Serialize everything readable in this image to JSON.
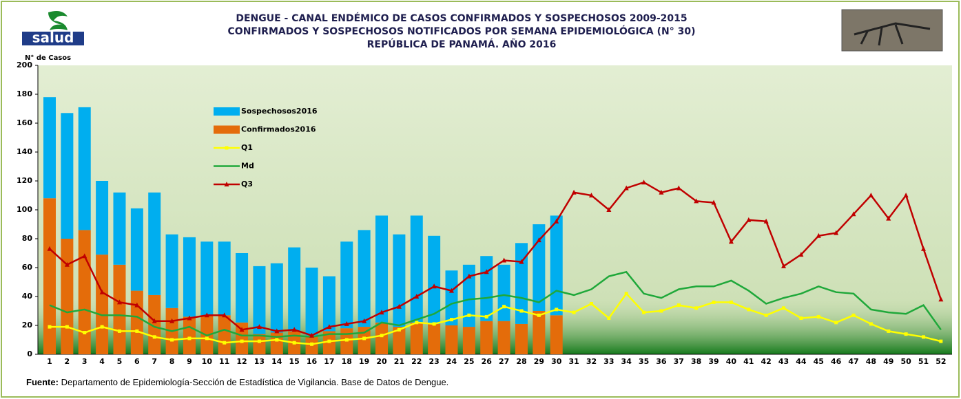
{
  "chart_data": {
    "type": "bar-line",
    "title_lines": [
      "DENGUE - CANAL ENDÉMICO DE CASOS CONFIRMADOS Y SOSPECHOSOS 2009-2015",
      "CONFIRMADOS Y SOSPECHOSOS NOTIFICADOS POR SEMANA EPIDEMIOLÓGICA (N° 30)",
      "REPÚBLICA DE PANAMÁ. AÑO 2016"
    ],
    "logo_text": "salud",
    "y_label": "N° de Casos",
    "source_label": "Fuente:",
    "source_text": "Departamento de Epidemiología-Sección de Estadística de Vigilancia. Base de Datos de Dengue.",
    "categories": [
      1,
      2,
      3,
      4,
      5,
      6,
      7,
      8,
      9,
      10,
      11,
      12,
      13,
      14,
      15,
      16,
      17,
      18,
      19,
      20,
      21,
      22,
      23,
      24,
      25,
      26,
      27,
      28,
      29,
      30,
      31,
      32,
      33,
      34,
      35,
      36,
      37,
      38,
      39,
      40,
      41,
      42,
      43,
      44,
      45,
      46,
      47,
      48,
      49,
      50,
      51,
      52
    ],
    "ylim": [
      0,
      200
    ],
    "yticks": [
      0,
      20,
      40,
      60,
      80,
      100,
      120,
      140,
      160,
      180,
      200
    ],
    "series": [
      {
        "name": "Sospechosos2016",
        "kind": "bar",
        "color": "#00aeef",
        "values": [
          70,
          87,
          85,
          51,
          50,
          57,
          71,
          51,
          55,
          51,
          51,
          48,
          47,
          48,
          58,
          47,
          38,
          60,
          67,
          74,
          64,
          74,
          61,
          38,
          43,
          45,
          39,
          56,
          60,
          69,
          null,
          null,
          null,
          null,
          null,
          null,
          null,
          null,
          null,
          null,
          null,
          null,
          null,
          null,
          null,
          null,
          null,
          null,
          null,
          null,
          null,
          null
        ]
      },
      {
        "name": "Confirmados2016",
        "kind": "bar",
        "color": "#e46c0a",
        "values": [
          108,
          80,
          86,
          69,
          62,
          44,
          41,
          32,
          26,
          27,
          27,
          22,
          14,
          15,
          16,
          13,
          16,
          18,
          19,
          22,
          19,
          22,
          21,
          20,
          19,
          23,
          23,
          21,
          30,
          27,
          null,
          null,
          null,
          null,
          null,
          null,
          null,
          null,
          null,
          null,
          null,
          null,
          null,
          null,
          null,
          null,
          null,
          null,
          null,
          null,
          null,
          null
        ]
      },
      {
        "name": "Q1",
        "kind": "line",
        "marker": "square",
        "color": "#ffff00",
        "values": [
          19,
          19,
          15,
          19,
          16,
          16,
          12,
          10,
          11,
          11,
          8,
          9,
          9,
          10,
          8,
          7,
          9,
          10,
          11,
          13,
          17,
          22,
          21,
          24,
          27,
          26,
          33,
          30,
          27,
          31,
          29,
          35,
          25,
          42,
          29,
          30,
          34,
          32,
          36,
          36,
          31,
          27,
          32,
          25,
          26,
          22,
          27,
          21,
          16,
          14,
          12,
          9
        ]
      },
      {
        "name": "Md",
        "kind": "line",
        "marker": "none",
        "color": "#1fa83a",
        "values": [
          34,
          29,
          31,
          27,
          27,
          26,
          19,
          16,
          19,
          13,
          17,
          13,
          13,
          12,
          13,
          12,
          14,
          14,
          15,
          22,
          20,
          24,
          28,
          35,
          38,
          39,
          41,
          39,
          36,
          44,
          41,
          45,
          54,
          57,
          42,
          39,
          45,
          47,
          47,
          51,
          44,
          35,
          39,
          42,
          47,
          43,
          42,
          31,
          29,
          28,
          34,
          17
        ]
      },
      {
        "name": "Q3",
        "kind": "line",
        "marker": "triangle",
        "color": "#c00000",
        "values": [
          73,
          62,
          68,
          43,
          36,
          34,
          23,
          23,
          25,
          27,
          27,
          17,
          19,
          16,
          17,
          13,
          19,
          21,
          23,
          29,
          33,
          40,
          47,
          44,
          54,
          57,
          65,
          64,
          79,
          92,
          112,
          110,
          100,
          115,
          119,
          112,
          115,
          106,
          105,
          78,
          93,
          92,
          61,
          69,
          82,
          84,
          97,
          110,
          94,
          110,
          73,
          38
        ]
      }
    ]
  }
}
